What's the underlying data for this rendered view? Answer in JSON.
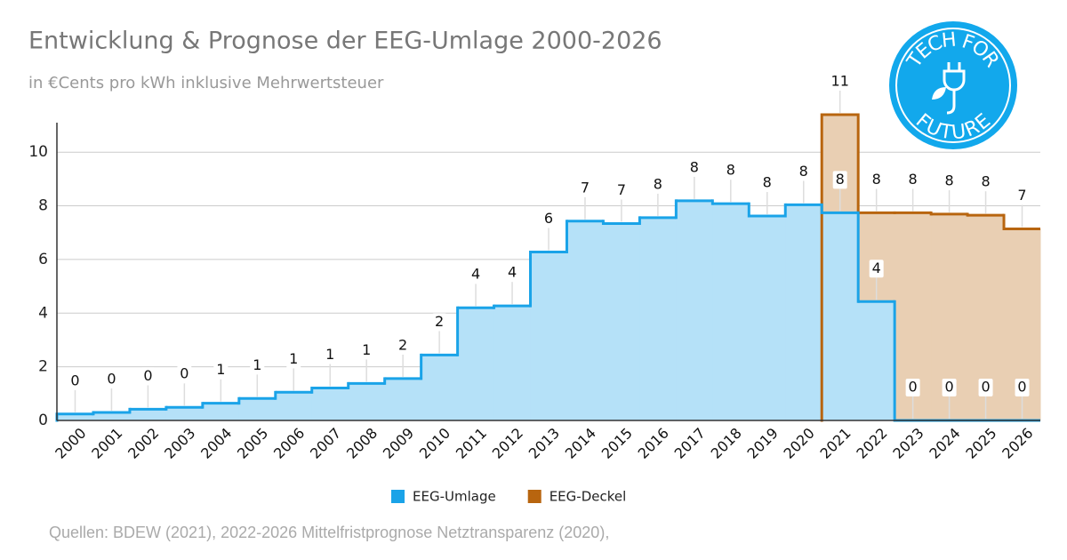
{
  "chart_data": {
    "type": "step-area",
    "title": "Entwicklung & Prognose der EEG-Umlage 2000-2026",
    "subtitle": "in €Cents pro kWh inklusive Mehrwertsteuer",
    "source": "Quellen: BDEW (2021), 2022-2026 Mittelfristprognose Netztransparenz (2020),",
    "categories": [
      "2000",
      "2001",
      "2002",
      "2003",
      "2004",
      "2005",
      "2006",
      "2007",
      "2008",
      "2009",
      "2010",
      "2011",
      "2012",
      "2013",
      "2014",
      "2015",
      "2016",
      "2017",
      "2018",
      "2019",
      "2020",
      "2021",
      "2022",
      "2023",
      "2024",
      "2025",
      "2026"
    ],
    "series": [
      {
        "name": "EEG-Umlage",
        "color": "#1aa3e8",
        "fill": "#b5e1f8",
        "values": [
          0.24,
          0.3,
          0.42,
          0.49,
          0.64,
          0.82,
          1.05,
          1.21,
          1.38,
          1.56,
          2.44,
          4.2,
          4.27,
          6.28,
          7.43,
          7.34,
          7.56,
          8.19,
          8.08,
          7.62,
          8.04,
          7.74,
          4.43,
          0,
          0,
          0,
          0
        ],
        "value_labels": [
          "0",
          "0",
          "0",
          "0",
          "1",
          "1",
          "1",
          "1",
          "1",
          "2",
          "2",
          "4",
          "4",
          "6",
          "7",
          "7",
          "8",
          "8",
          "8",
          "8",
          "8",
          "8",
          "4",
          "0",
          "0",
          "0",
          "0"
        ]
      },
      {
        "name": "EEG-Deckel",
        "color": "#b8650f",
        "fill": "#e9cfb3",
        "values": [
          null,
          null,
          null,
          null,
          null,
          null,
          null,
          null,
          null,
          null,
          null,
          null,
          null,
          null,
          null,
          null,
          null,
          null,
          null,
          null,
          null,
          11.4,
          7.74,
          7.74,
          7.69,
          7.65,
          7.14
        ],
        "value_labels": [
          null,
          null,
          null,
          null,
          null,
          null,
          null,
          null,
          null,
          null,
          null,
          null,
          null,
          null,
          null,
          null,
          null,
          null,
          null,
          null,
          null,
          "11",
          "8",
          "8",
          "8",
          "8",
          "7"
        ]
      }
    ],
    "ylim": [
      0,
      11.1
    ],
    "yticks": [
      0,
      2,
      4,
      6,
      8,
      10
    ],
    "grid": true,
    "legend": "bottom"
  },
  "logo": {
    "top": "TECH FOR",
    "bottom": "FUTURE"
  }
}
